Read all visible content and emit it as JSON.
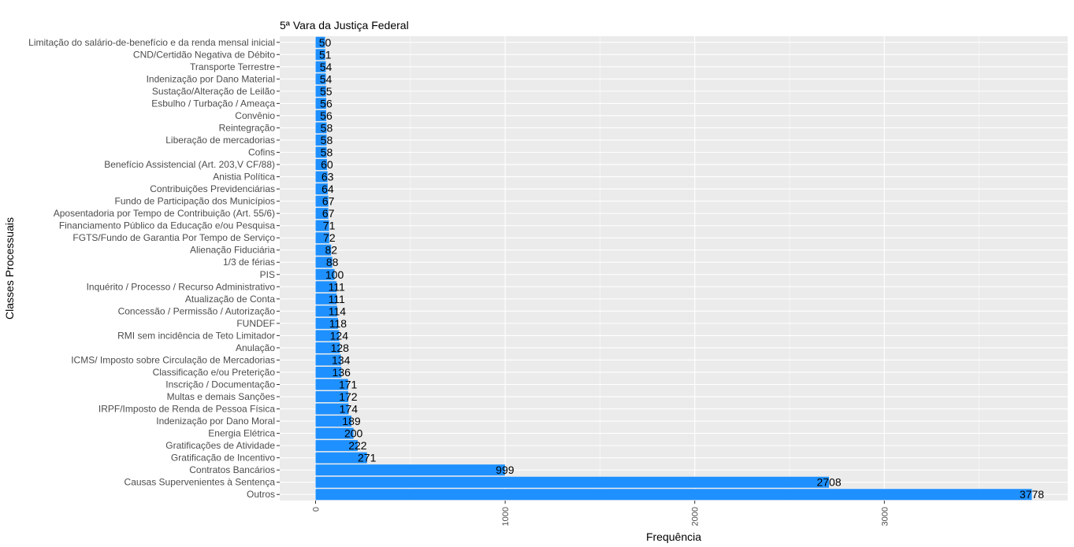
{
  "chart_data": {
    "type": "bar",
    "orientation": "horizontal",
    "title": "5ª Vara da Justiça Federal",
    "xlabel": "Frequência",
    "ylabel": "Classes Processuais",
    "xlim": [
      0,
      3778
    ],
    "xticks": [
      0,
      1000,
      2000,
      3000
    ],
    "grid": true,
    "bar_color": "#1E90FF",
    "panel_color": "#EBEBEB",
    "categories": [
      "Limitação do salário-de-benefício e da renda mensal inicial",
      "CND/Certidão Negativa de Débito",
      "Transporte Terrestre",
      "Indenização por Dano Material",
      "Sustação/Alteração de Leilão",
      "Esbulho / Turbação / Ameaça",
      "Convênio",
      "Reintegração",
      "Liberação de mercadorias",
      "Cofins",
      "Benefício Assistencial (Art. 203,V CF/88)",
      "Anistia Política",
      "Contribuições Previdenciárias",
      "Fundo de Participação dos Municípios",
      "Aposentadoria por Tempo de Contribuição (Art. 55/6)",
      "Financiamento Público da Educação e/ou Pesquisa",
      "FGTS/Fundo de Garantia Por Tempo de Serviço",
      "Alienação Fiduciária",
      "1/3 de férias",
      "PIS",
      "Inquérito / Processo / Recurso Administrativo",
      "Atualização de Conta",
      "Concessão / Permissão / Autorização",
      "FUNDEF",
      "RMI sem incidência de Teto Limitador",
      "Anulação",
      "ICMS/ Imposto sobre Circulação de Mercadorias",
      "Classificação e/ou Preterição",
      "Inscrição / Documentação",
      "Multas e demais Sanções",
      "IRPF/Imposto de Renda de Pessoa Física",
      "Indenização por Dano Moral",
      "Energia Elétrica",
      "Gratificações de Atividade",
      "Gratificação de Incentivo",
      "Contratos Bancários",
      "Causas Supervenientes à Sentença",
      "Outros"
    ],
    "values": [
      50,
      51,
      54,
      54,
      55,
      56,
      56,
      58,
      58,
      58,
      60,
      63,
      64,
      67,
      67,
      71,
      72,
      82,
      88,
      100,
      111,
      111,
      114,
      118,
      124,
      128,
      134,
      136,
      171,
      172,
      174,
      189,
      200,
      222,
      271,
      999,
      2708,
      3778
    ]
  }
}
